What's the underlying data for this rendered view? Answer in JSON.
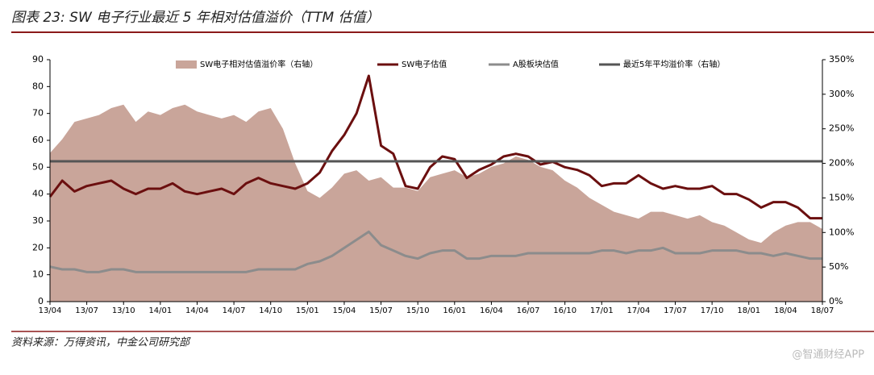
{
  "chart_data": {
    "type": "line",
    "title": "图表 23: SW 电子行业最近 5 年相对估值溢价（TTM 估值）",
    "source": "资料来源：万得资讯，中金公司研究部",
    "watermark": "@智通财经APP",
    "categories": [
      "13/04",
      null,
      null,
      "13/07",
      null,
      null,
      "13/10",
      null,
      null,
      "14/01",
      null,
      null,
      "14/04",
      null,
      null,
      "14/07",
      null,
      null,
      "14/10",
      null,
      null,
      "15/01",
      null,
      null,
      "15/04",
      null,
      null,
      "15/07",
      null,
      null,
      "15/10",
      null,
      null,
      "16/01",
      null,
      null,
      "16/04",
      null,
      null,
      "16/07",
      null,
      null,
      "16/10",
      null,
      null,
      "17/01",
      null,
      null,
      "17/04",
      null,
      null,
      "17/07",
      null,
      null,
      "17/10",
      null,
      null,
      "18/01",
      null,
      null,
      "18/04",
      null,
      null,
      "18/07"
    ],
    "series": [
      {
        "name": "SW电子相对估值溢价率（右轴）",
        "type": "area",
        "axis": "y2",
        "color": "#c9a59a",
        "values": [
          215,
          235,
          260,
          265,
          270,
          280,
          285,
          260,
          275,
          270,
          280,
          285,
          275,
          270,
          265,
          270,
          260,
          275,
          280,
          250,
          200,
          160,
          150,
          165,
          185,
          190,
          175,
          180,
          165,
          165,
          160,
          180,
          185,
          190,
          180,
          185,
          195,
          200,
          210,
          205,
          195,
          190,
          175,
          165,
          150,
          140,
          130,
          125,
          120,
          130,
          130,
          125,
          120,
          125,
          115,
          110,
          100,
          90,
          85,
          100,
          110,
          115,
          115,
          105
        ]
      },
      {
        "name": "SW电子估值",
        "type": "line",
        "color": "#6b0f0f",
        "width": 3,
        "values": [
          39,
          45,
          41,
          43,
          44,
          45,
          42,
          40,
          42,
          42,
          44,
          41,
          40,
          41,
          42,
          40,
          44,
          46,
          44,
          43,
          42,
          44,
          48,
          56,
          62,
          70,
          84,
          58,
          55,
          43,
          42,
          50,
          54,
          53,
          46,
          49,
          51,
          54,
          55,
          54,
          51,
          52,
          50,
          49,
          47,
          43,
          44,
          44,
          47,
          44,
          42,
          43,
          42,
          42,
          43,
          40,
          40,
          38,
          35,
          37,
          37,
          35,
          31,
          31
        ]
      },
      {
        "name": "A股板块估值",
        "type": "line",
        "color": "#8c8c8c",
        "width": 3,
        "values": [
          13,
          12,
          12,
          11,
          11,
          12,
          12,
          11,
          11,
          11,
          11,
          11,
          11,
          11,
          11,
          11,
          11,
          12,
          12,
          12,
          12,
          14,
          15,
          17,
          20,
          23,
          26,
          21,
          19,
          17,
          16,
          18,
          19,
          19,
          16,
          16,
          17,
          17,
          17,
          18,
          18,
          18,
          18,
          18,
          18,
          19,
          19,
          18,
          19,
          19,
          20,
          18,
          18,
          18,
          19,
          19,
          19,
          18,
          18,
          17,
          18,
          17,
          16,
          16
        ]
      },
      {
        "name": "最近5年平均溢价率（右轴）",
        "type": "line",
        "axis": "y2",
        "color": "#555555",
        "width": 3,
        "values": [
          203,
          203,
          203,
          203,
          203,
          203,
          203,
          203,
          203,
          203,
          203,
          203,
          203,
          203,
          203,
          203,
          203,
          203,
          203,
          203,
          203,
          203,
          203,
          203,
          203,
          203,
          203,
          203,
          203,
          203,
          203,
          203,
          203,
          203,
          203,
          203,
          203,
          203,
          203,
          203,
          203,
          203,
          203,
          203,
          203,
          203,
          203,
          203,
          203,
          203,
          203,
          203,
          203,
          203,
          203,
          203,
          203,
          203,
          203,
          203,
          203,
          203,
          203,
          203
        ]
      }
    ],
    "ylim": [
      0,
      90
    ],
    "yticks": [
      0,
      10,
      20,
      30,
      40,
      50,
      60,
      70,
      80,
      90
    ],
    "y2lim": [
      0,
      350
    ],
    "y2ticks": [
      {
        "value": 0,
        "label": "0%"
      },
      {
        "value": 50,
        "label": "50%"
      },
      {
        "value": 100,
        "label": "100%"
      },
      {
        "value": 150,
        "label": "150%"
      },
      {
        "value": 200,
        "label": "200%"
      },
      {
        "value": 250,
        "label": "250%"
      },
      {
        "value": 300,
        "label": "300%"
      },
      {
        "value": 350,
        "label": "350%"
      }
    ]
  }
}
